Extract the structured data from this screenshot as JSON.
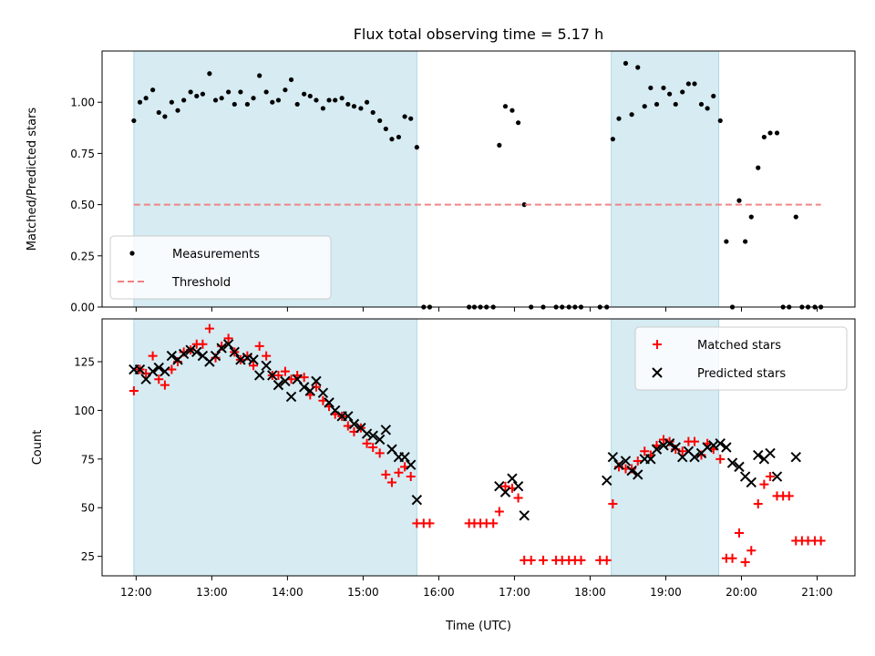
{
  "chart_data": [
    {
      "type": "scatter",
      "title": "Flux total observing time = 5.17 h",
      "xlabel": "",
      "ylabel": "Matched/Predicted stars",
      "xlim": [
        11.55,
        21.5
      ],
      "ylim": [
        0.0,
        1.25
      ],
      "xticks": [
        12,
        13,
        14,
        15,
        16,
        17,
        18,
        19,
        20,
        21
      ],
      "yticks": [
        0.0,
        0.25,
        0.5,
        0.75,
        1.0
      ],
      "ytick_labels": [
        "0.00",
        "0.25",
        "0.50",
        "0.75",
        "1.00"
      ],
      "shaded_intervals": [
        [
          11.97,
          15.71
        ],
        [
          18.28,
          19.7
        ]
      ],
      "legend_position": "lower-left",
      "series": [
        {
          "name": "Measurements",
          "marker": "dot",
          "color": "#000000",
          "x": [
            11.97,
            12.05,
            12.13,
            12.22,
            12.3,
            12.38,
            12.47,
            12.55,
            12.63,
            12.72,
            12.8,
            12.88,
            12.97,
            13.05,
            13.13,
            13.22,
            13.3,
            13.38,
            13.47,
            13.55,
            13.63,
            13.72,
            13.8,
            13.88,
            13.97,
            14.05,
            14.13,
            14.22,
            14.3,
            14.38,
            14.47,
            14.55,
            14.63,
            14.72,
            14.8,
            14.88,
            14.97,
            15.05,
            15.13,
            15.22,
            15.3,
            15.38,
            15.47,
            15.55,
            15.63,
            15.71,
            15.8,
            15.88,
            16.4,
            16.47,
            16.55,
            16.63,
            16.72,
            16.8,
            16.88,
            16.97,
            17.05,
            17.13,
            17.22,
            17.38,
            17.55,
            17.63,
            17.72,
            17.8,
            17.88,
            18.13,
            18.22,
            18.3,
            18.38,
            18.47,
            18.55,
            18.63,
            18.72,
            18.8,
            18.88,
            18.97,
            19.05,
            19.13,
            19.22,
            19.3,
            19.38,
            19.47,
            19.55,
            19.63,
            19.72,
            19.8,
            19.88,
            19.97,
            20.05,
            20.13,
            20.22,
            20.3,
            20.38,
            20.47,
            20.55,
            20.63,
            20.72,
            20.8,
            20.88,
            20.97,
            21.05
          ],
          "y": [
            0.91,
            1.0,
            1.02,
            1.06,
            0.95,
            0.93,
            1.0,
            0.96,
            1.01,
            1.05,
            1.03,
            1.04,
            1.14,
            1.01,
            1.02,
            1.05,
            0.99,
            1.05,
            0.99,
            1.02,
            1.13,
            1.05,
            1.0,
            1.01,
            1.06,
            1.11,
            0.99,
            1.04,
            1.03,
            1.01,
            0.97,
            1.01,
            1.01,
            1.02,
            0.99,
            0.98,
            0.97,
            1.0,
            0.95,
            0.91,
            0.87,
            0.82,
            0.83,
            0.93,
            0.92,
            0.78,
            0.0,
            0.0,
            0.0,
            0.0,
            0.0,
            0.0,
            0.0,
            0.79,
            0.98,
            0.96,
            0.9,
            0.5,
            0.0,
            0.0,
            0.0,
            0.0,
            0.0,
            0.0,
            0.0,
            0.0,
            0.0,
            0.82,
            0.92,
            1.19,
            0.94,
            1.17,
            0.98,
            1.07,
            0.99,
            1.07,
            1.04,
            0.99,
            1.05,
            1.09,
            1.09,
            0.99,
            0.97,
            1.03,
            0.91,
            0.32,
            0.0,
            0.52,
            0.32,
            0.44,
            0.68,
            0.83,
            0.85,
            0.85,
            0.0,
            0.0,
            0.44,
            0.0,
            0.0,
            0.0,
            0.0
          ]
        },
        {
          "name": "Threshold",
          "style": "dashed",
          "color": "#f08080",
          "x": [
            11.97,
            21.05
          ],
          "y": [
            0.5,
            0.5
          ]
        }
      ]
    },
    {
      "type": "scatter",
      "title": "",
      "xlabel": "Time (UTC)",
      "ylabel": "Count",
      "xlim": [
        11.55,
        21.5
      ],
      "ylim": [
        15,
        147
      ],
      "xticks": [
        12,
        13,
        14,
        15,
        16,
        17,
        18,
        19,
        20,
        21
      ],
      "xtick_labels": [
        "12:00",
        "13:00",
        "14:00",
        "15:00",
        "16:00",
        "17:00",
        "18:00",
        "19:00",
        "20:00",
        "21:00"
      ],
      "yticks": [
        25,
        50,
        75,
        100,
        125
      ],
      "ytick_labels": [
        "25",
        "50",
        "75",
        "100",
        "125"
      ],
      "shaded_intervals": [
        [
          11.97,
          15.71
        ],
        [
          18.28,
          19.7
        ]
      ],
      "legend_position": "top-right",
      "series": [
        {
          "name": "Matched stars",
          "marker": "plus",
          "color": "#ff0000",
          "x": [
            11.97,
            12.05,
            12.13,
            12.22,
            12.3,
            12.38,
            12.47,
            12.55,
            12.63,
            12.72,
            12.8,
            12.88,
            12.97,
            13.05,
            13.13,
            13.22,
            13.3,
            13.38,
            13.47,
            13.55,
            13.63,
            13.72,
            13.8,
            13.88,
            13.97,
            14.05,
            14.13,
            14.22,
            14.3,
            14.38,
            14.47,
            14.55,
            14.63,
            14.72,
            14.8,
            14.88,
            14.97,
            15.05,
            15.13,
            15.22,
            15.3,
            15.38,
            15.47,
            15.55,
            15.63,
            15.71,
            15.8,
            15.88,
            16.4,
            16.47,
            16.55,
            16.63,
            16.72,
            16.8,
            16.88,
            16.97,
            17.05,
            17.13,
            17.22,
            17.38,
            17.55,
            17.63,
            17.72,
            17.8,
            17.88,
            18.13,
            18.22,
            18.3,
            18.38,
            18.47,
            18.55,
            18.63,
            18.72,
            18.8,
            18.88,
            18.97,
            19.05,
            19.13,
            19.22,
            19.3,
            19.38,
            19.47,
            19.55,
            19.63,
            19.72,
            19.8,
            19.88,
            19.97,
            20.05,
            20.13,
            20.22,
            20.3,
            20.38,
            20.47,
            20.55,
            20.63,
            20.72,
            20.8,
            20.88,
            20.97,
            21.05
          ],
          "y": [
            110,
            121,
            119,
            128,
            116,
            113,
            121,
            125,
            130,
            131,
            134,
            134,
            142,
            127,
            133,
            137,
            130,
            126,
            128,
            123,
            133,
            128,
            118,
            118,
            120,
            116,
            118,
            117,
            108,
            112,
            105,
            102,
            98,
            97,
            92,
            89,
            91,
            83,
            81,
            78,
            67,
            63,
            68,
            71,
            66,
            42,
            42,
            42,
            42,
            42,
            42,
            42,
            42,
            48,
            61,
            60,
            55,
            23,
            23,
            23,
            23,
            23,
            23,
            23,
            23,
            23,
            23,
            52,
            71,
            70,
            70,
            74,
            79,
            77,
            82,
            85,
            84,
            80,
            79,
            84,
            84,
            77,
            83,
            80,
            75,
            24,
            24,
            37,
            22,
            28,
            52,
            62,
            66,
            56,
            56,
            56,
            33,
            33,
            33,
            33,
            33
          ]
        },
        {
          "name": "Predicted stars",
          "marker": "x",
          "color": "#000000",
          "x": [
            11.97,
            12.05,
            12.13,
            12.22,
            12.3,
            12.38,
            12.47,
            12.55,
            12.63,
            12.72,
            12.8,
            12.88,
            12.97,
            13.05,
            13.13,
            13.22,
            13.3,
            13.38,
            13.47,
            13.55,
            13.63,
            13.72,
            13.8,
            13.88,
            13.97,
            14.05,
            14.13,
            14.22,
            14.3,
            14.38,
            14.47,
            14.55,
            14.63,
            14.72,
            14.8,
            14.88,
            14.97,
            15.05,
            15.13,
            15.22,
            15.3,
            15.38,
            15.47,
            15.55,
            15.63,
            15.71,
            16.8,
            16.88,
            16.97,
            17.05,
            17.13,
            18.22,
            18.3,
            18.38,
            18.47,
            18.55,
            18.63,
            18.72,
            18.8,
            18.88,
            18.97,
            19.05,
            19.13,
            19.22,
            19.3,
            19.38,
            19.47,
            19.55,
            19.63,
            19.72,
            19.8,
            19.88,
            19.97,
            20.05,
            20.13,
            20.22,
            20.3,
            20.38,
            20.47,
            20.72
          ],
          "y": [
            121,
            121,
            116,
            120,
            122,
            120,
            128,
            126,
            129,
            131,
            130,
            128,
            125,
            128,
            132,
            134,
            130,
            126,
            127,
            126,
            118,
            123,
            118,
            113,
            115,
            107,
            116,
            112,
            110,
            115,
            109,
            104,
            100,
            97,
            97,
            93,
            91,
            88,
            87,
            85,
            90,
            80,
            76,
            76,
            72,
            54,
            61,
            58,
            65,
            61,
            46,
            64,
            76,
            72,
            74,
            69,
            67,
            75,
            75,
            80,
            82,
            83,
            81,
            76,
            79,
            76,
            78,
            81,
            82,
            83,
            81,
            73,
            71,
            66,
            63,
            77,
            75,
            78,
            66,
            76
          ]
        }
      ]
    }
  ]
}
